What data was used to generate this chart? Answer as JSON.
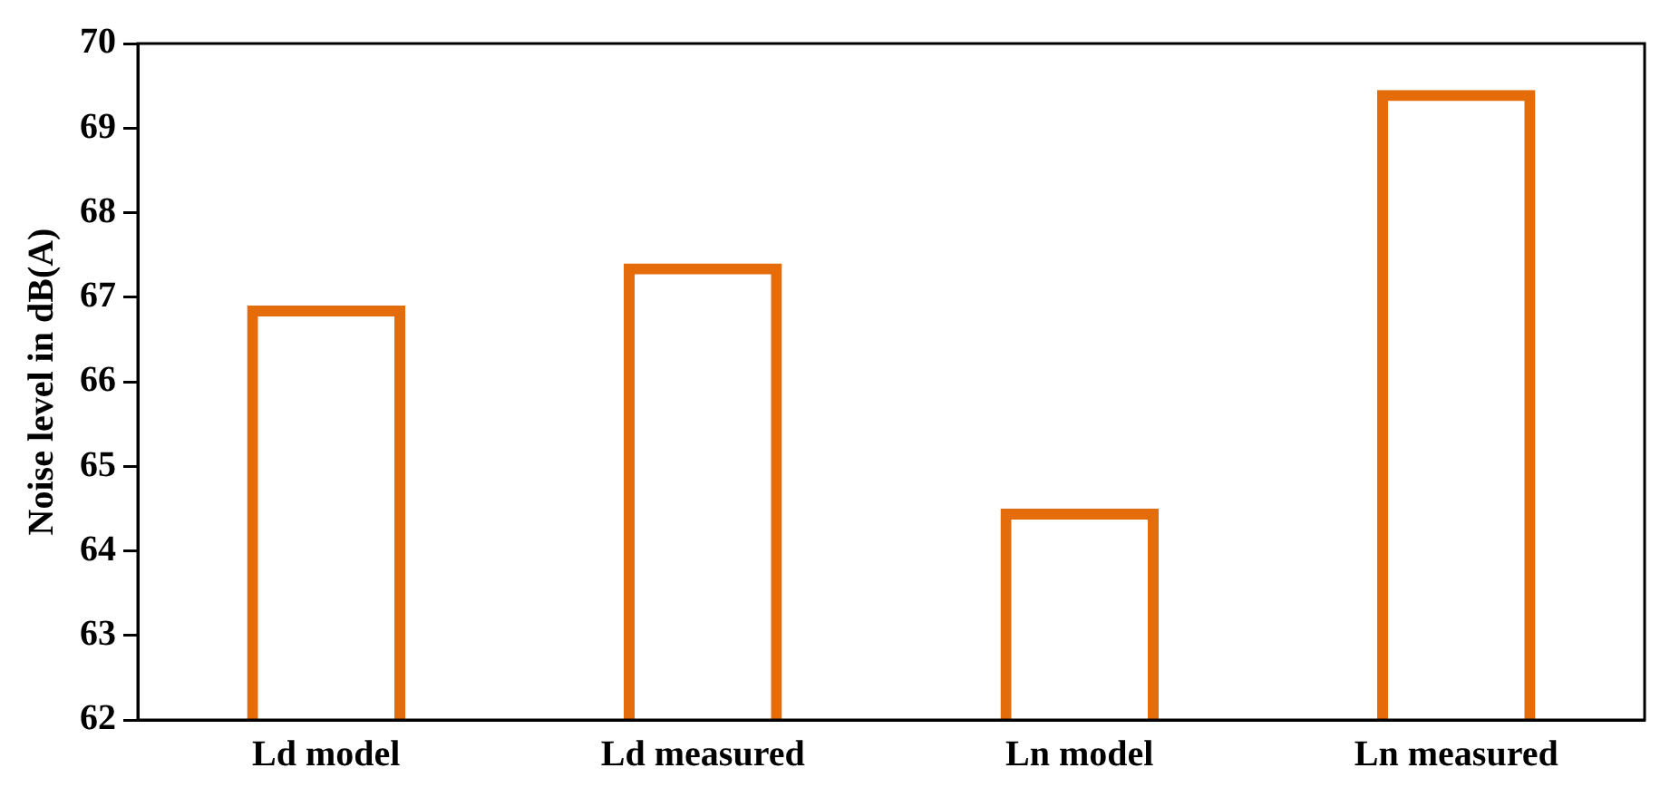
{
  "chart_data": {
    "type": "bar",
    "ylabel": "Noise level in dB(A)",
    "categories": [
      "Ld model",
      "Ld measured",
      "Ln model",
      "Ln measured"
    ],
    "values": [
      66.9,
      67.4,
      64.5,
      69.45
    ],
    "color": "#e46c0a",
    "ylim": [
      62,
      70
    ],
    "yticks": [
      62,
      63,
      64,
      65,
      66,
      67,
      68,
      69,
      70
    ],
    "grid": false,
    "legend": false
  }
}
